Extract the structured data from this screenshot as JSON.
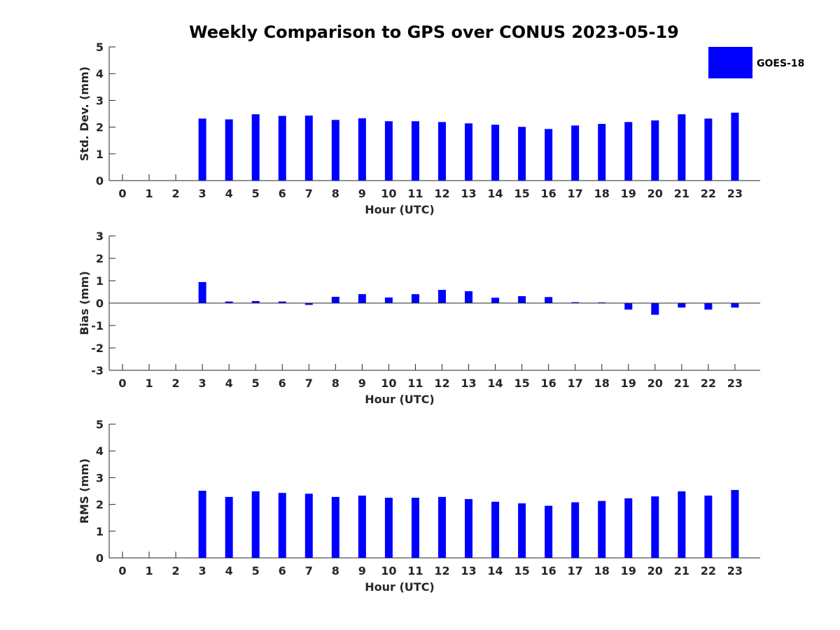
{
  "chart_data": {
    "type": "bar",
    "title": "Weekly Comparison to GPS over CONUS 2023-05-19",
    "legend": {
      "entries": [
        {
          "name": "GOES-18",
          "color": "#0000FF"
        }
      ],
      "placement": "top-right"
    },
    "categories": [
      "0",
      "1",
      "2",
      "3",
      "4",
      "5",
      "6",
      "7",
      "8",
      "9",
      "10",
      "11",
      "12",
      "13",
      "14",
      "15",
      "16",
      "17",
      "18",
      "19",
      "20",
      "21",
      "22",
      "23"
    ],
    "panels": [
      {
        "id": "std",
        "type": "bar",
        "xlabel": "Hour (UTC)",
        "ylabel": "Std. Dev. (mm)",
        "ylim": [
          0,
          5
        ],
        "yticks": [
          "0",
          "1",
          "2",
          "3",
          "4",
          "5"
        ],
        "series": [
          {
            "name": "GOES-18",
            "values": [
              null,
              null,
              null,
              2.32,
              2.29,
              2.48,
              2.42,
              2.43,
              2.27,
              2.33,
              2.22,
              2.22,
              2.19,
              2.14,
              2.09,
              2.01,
              1.93,
              2.06,
              2.12,
              2.19,
              2.25,
              2.48,
              2.32,
              2.54
            ]
          }
        ]
      },
      {
        "id": "bias",
        "type": "bar",
        "xlabel": "Hour (UTC)",
        "ylabel": "Bias (mm)",
        "ylim": [
          -3,
          3
        ],
        "yticks": [
          "-3",
          "-2",
          "-1",
          "0",
          "1",
          "2",
          "3"
        ],
        "series": [
          {
            "name": "GOES-18",
            "values": [
              null,
              null,
              null,
              0.94,
              0.07,
              0.09,
              0.07,
              -0.08,
              0.28,
              0.4,
              0.25,
              0.4,
              0.59,
              0.53,
              0.24,
              0.31,
              0.27,
              0.04,
              0.03,
              -0.29,
              -0.52,
              -0.2,
              -0.29,
              -0.2
            ]
          }
        ]
      },
      {
        "id": "rms",
        "type": "bar",
        "xlabel": "Hour (UTC)",
        "ylabel": "RMS (mm)",
        "ylim": [
          0,
          5
        ],
        "yticks": [
          "0",
          "1",
          "2",
          "3",
          "4",
          "5"
        ],
        "series": [
          {
            "name": "GOES-18",
            "values": [
              null,
              null,
              null,
              2.51,
              2.28,
              2.49,
              2.43,
              2.4,
              2.28,
              2.33,
              2.25,
              2.25,
              2.28,
              2.2,
              2.1,
              2.04,
              1.95,
              2.08,
              2.13,
              2.23,
              2.3,
              2.49,
              2.33,
              2.54
            ]
          }
        ]
      }
    ]
  }
}
